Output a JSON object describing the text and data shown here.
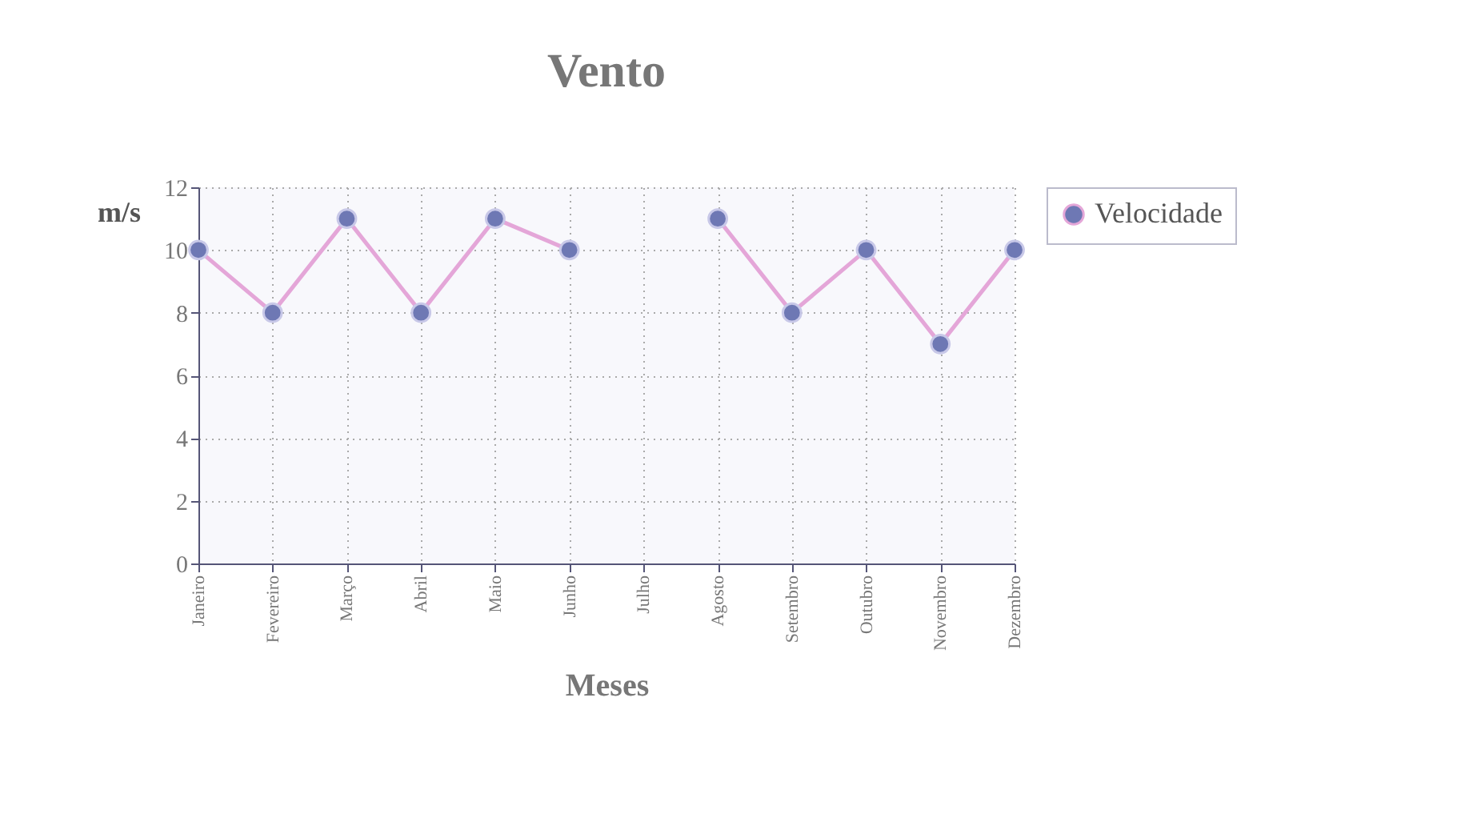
{
  "chart_data": {
    "type": "line",
    "title": "Vento",
    "xlabel": "Meses",
    "ylabel": "m/s",
    "categories": [
      "Janeiro",
      "Fevereiro",
      "Março",
      "Abril",
      "Maio",
      "Junho",
      "Julho",
      "Agosto",
      "Setembro",
      "Outubro",
      "Novembro",
      "Dezembro"
    ],
    "series": [
      {
        "name": "Velocidade",
        "color": "#e4a6d8",
        "values": [
          10,
          8,
          11,
          8,
          11,
          10,
          null,
          11,
          8,
          10,
          7,
          10
        ]
      }
    ],
    "ylim": [
      0,
      12
    ],
    "yticks": [
      0,
      2,
      4,
      6,
      8,
      10,
      12
    ],
    "grid": true,
    "legend": "right",
    "marker": "circle",
    "line_style": "solid"
  }
}
